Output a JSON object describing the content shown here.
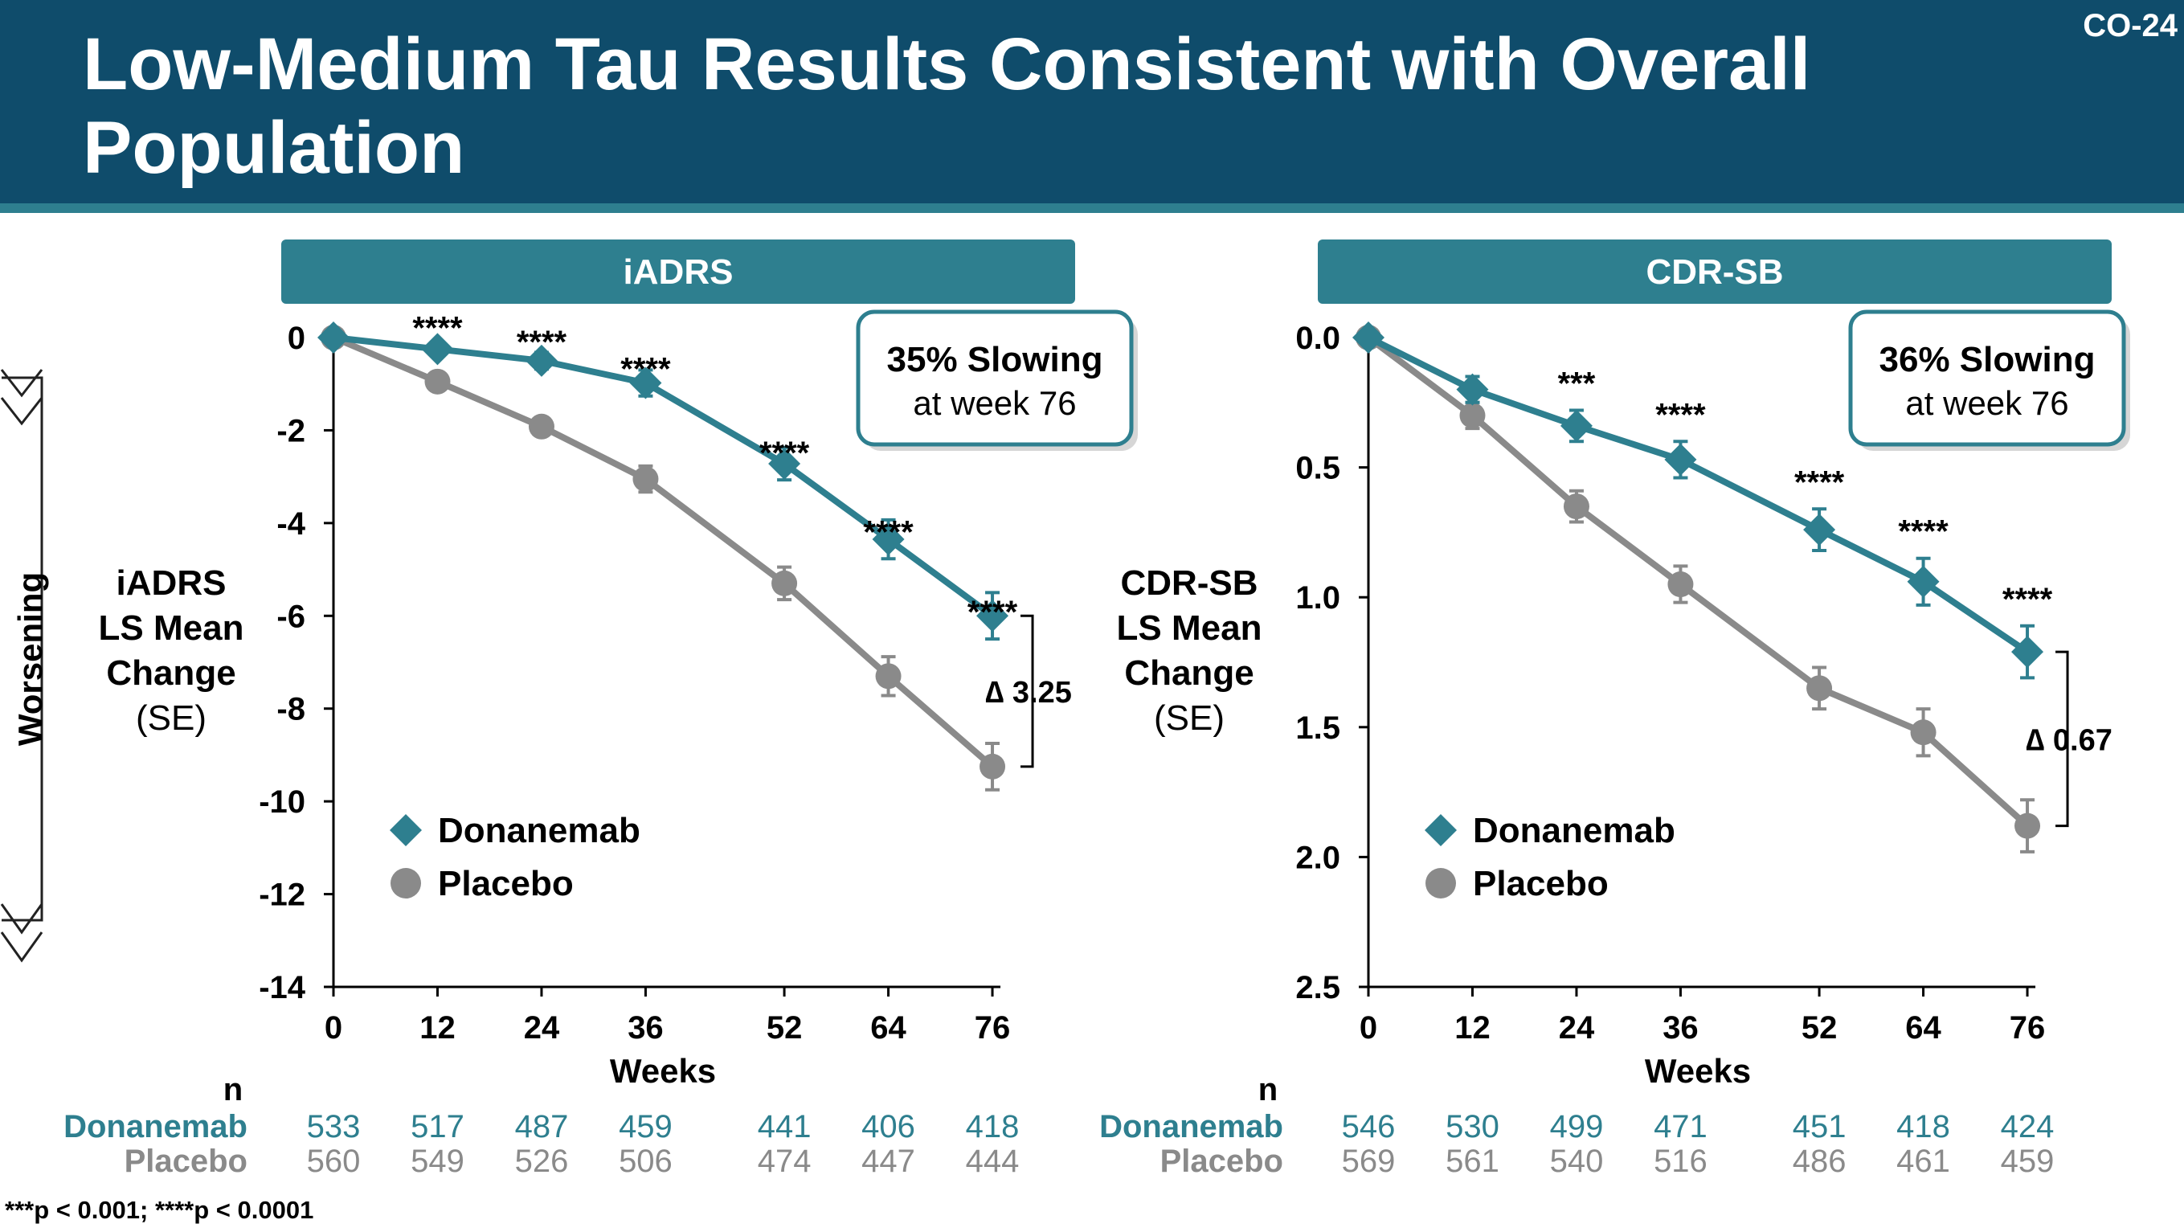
{
  "slide": {
    "title": "Low-Medium Tau Results Consistent with Overall Population",
    "code": "CO-24",
    "footnote": "***p < 0.001; ****p < 0.0001",
    "worsening_label": "Worsening"
  },
  "colors": {
    "header_bg": "#0f4c6b",
    "panel_header": "#2e7f8f",
    "donanemab": "#2e7f8f",
    "placebo": "#8a8a8a"
  },
  "chart_data": [
    {
      "type": "line",
      "title": "iADRS",
      "ylabel": [
        "iADRS",
        "LS Mean",
        "Change",
        "(SE)"
      ],
      "xlabel": "Weeks",
      "x": [
        0,
        12,
        24,
        36,
        52,
        64,
        76
      ],
      "ylim": [
        0,
        -14
      ],
      "yticks": [
        0,
        -2,
        -4,
        -6,
        -8,
        -10,
        -12,
        -14
      ],
      "yticklabels": [
        "0",
        "-2",
        "-4",
        "-6",
        "-8",
        "-10",
        "-12",
        "-14"
      ],
      "series": [
        {
          "name": "Donanemab",
          "marker": "diamond",
          "color": "#2e7f8f",
          "values": [
            0,
            -0.25,
            -0.5,
            -0.98,
            -2.72,
            -4.35,
            -6.0
          ],
          "se": [
            0,
            0.12,
            0.18,
            0.28,
            0.35,
            0.42,
            0.5
          ]
        },
        {
          "name": "Placebo",
          "marker": "circle",
          "color": "#8a8a8a",
          "values": [
            0,
            -0.95,
            -1.92,
            -3.05,
            -5.3,
            -7.3,
            -9.25
          ],
          "se": [
            0,
            0.12,
            0.18,
            0.28,
            0.35,
            0.42,
            0.5
          ]
        }
      ],
      "significance": [
        "",
        "****",
        "****",
        "****",
        "****",
        "****",
        "****"
      ],
      "callout": [
        "35% Slowing",
        "at week 76"
      ],
      "delta_label": "∆ 3.25",
      "n_header": "n",
      "n_rows": [
        {
          "name": "Donanemab",
          "values": [
            "533",
            "517",
            "487",
            "459",
            "441",
            "406",
            "418"
          ]
        },
        {
          "name": "Placebo",
          "values": [
            "560",
            "549",
            "526",
            "506",
            "474",
            "447",
            "444"
          ]
        }
      ]
    },
    {
      "type": "line",
      "title": "CDR-SB",
      "ylabel": [
        "CDR-SB",
        "LS Mean",
        "Change",
        "(SE)"
      ],
      "xlabel": "Weeks",
      "x": [
        0,
        12,
        24,
        36,
        52,
        64,
        76
      ],
      "ylim": [
        0.0,
        2.5
      ],
      "yticks": [
        0.0,
        0.5,
        1.0,
        1.5,
        2.0,
        2.5
      ],
      "yticklabels": [
        "0.0",
        "0.5",
        "1.0",
        "1.5",
        "2.0",
        "2.5"
      ],
      "series": [
        {
          "name": "Donanemab",
          "marker": "diamond",
          "color": "#2e7f8f",
          "values": [
            0,
            0.2,
            0.34,
            0.47,
            0.74,
            0.94,
            1.21
          ],
          "se": [
            0,
            0.05,
            0.06,
            0.07,
            0.08,
            0.09,
            0.1
          ]
        },
        {
          "name": "Placebo",
          "marker": "circle",
          "color": "#8a8a8a",
          "values": [
            0,
            0.3,
            0.65,
            0.95,
            1.35,
            1.52,
            1.88
          ],
          "se": [
            0,
            0.05,
            0.06,
            0.07,
            0.08,
            0.09,
            0.1
          ]
        }
      ],
      "significance": [
        "",
        "",
        "***",
        "****",
        "****",
        "****",
        "****"
      ],
      "callout": [
        "36% Slowing",
        "at week 76"
      ],
      "delta_label": "∆ 0.67",
      "n_header": "n",
      "n_rows": [
        {
          "name": "Donanemab",
          "values": [
            "546",
            "530",
            "499",
            "471",
            "451",
            "418",
            "424"
          ]
        },
        {
          "name": "Placebo",
          "values": [
            "569",
            "561",
            "540",
            "516",
            "486",
            "461",
            "459"
          ]
        }
      ]
    }
  ]
}
